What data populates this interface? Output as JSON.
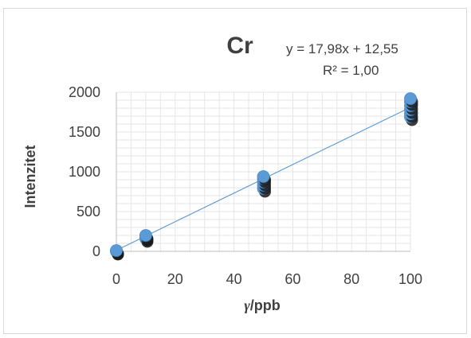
{
  "chart_data": {
    "type": "scatter",
    "title": "Cr",
    "xlabel": "γ/ppb",
    "xlabel_symbol": "γ",
    "xlabel_unit": "/ppb",
    "ylabel": "Intenzitet",
    "xlim": [
      0,
      100
    ],
    "ylim": [
      0,
      2000
    ],
    "xticks": [
      "0",
      "20",
      "40",
      "60",
      "80",
      "100"
    ],
    "yticks": [
      "0",
      "500",
      "1000",
      "1500",
      "2000"
    ],
    "grid": true,
    "legend": "none",
    "trendline": {
      "equation": "y = 17,98x + 12,55",
      "r2": "R² = 1,00",
      "slope": 17.98,
      "intercept": 12.55
    },
    "series": [
      {
        "color": "#5b9bd5",
        "x": [
          0,
          0,
          0,
          10,
          10,
          10,
          10,
          50,
          50,
          50,
          50,
          50,
          100,
          100,
          100,
          100,
          100,
          100
        ],
        "y": [
          0,
          5,
          10,
          160,
          175,
          190,
          200,
          790,
          830,
          870,
          910,
          940,
          1690,
          1730,
          1780,
          1830,
          1880,
          1920
        ]
      }
    ],
    "colors": {
      "marker": "#5b9bd5",
      "marker_shadow": "#1a1a1a",
      "trendline": "#5b9bd5",
      "grid": "#e6e6e6",
      "axis": "#bfbfbf",
      "text": "#404040"
    }
  }
}
